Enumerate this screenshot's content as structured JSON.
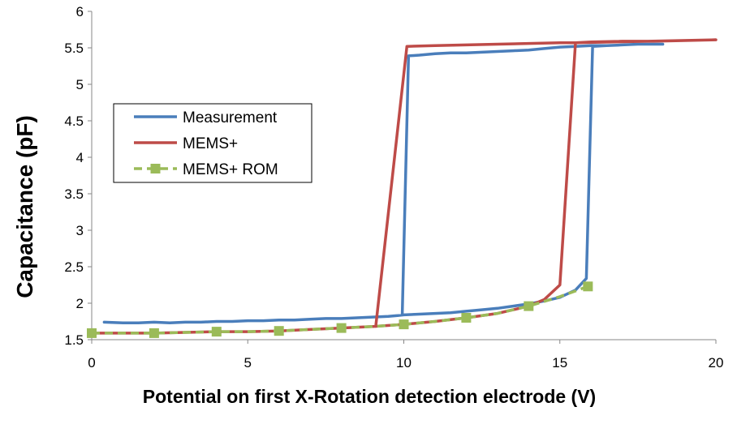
{
  "chart_data": {
    "type": "line",
    "title": "",
    "xlabel": "Potential on first X-Rotation detection electrode (V)",
    "ylabel": "Capacitance (pF)",
    "xlim": [
      0,
      20
    ],
    "ylim": [
      1.5,
      6
    ],
    "xticks": [
      0,
      5,
      10,
      15,
      20
    ],
    "yticks": [
      1.5,
      2,
      2.5,
      3,
      3.5,
      4,
      4.5,
      5,
      5.5,
      6
    ],
    "grid": false,
    "legend_position": "left-middle",
    "series": [
      {
        "name": "Measurement",
        "color": "#4a7ebb",
        "style": "solid",
        "marker": "none",
        "x": [
          0.4,
          1.0,
          1.5,
          2.0,
          2.5,
          3.0,
          3.5,
          4.0,
          4.5,
          5.0,
          5.5,
          6.0,
          6.5,
          7.0,
          7.5,
          8.0,
          8.5,
          9.0,
          9.5,
          9.8,
          10.0,
          10.5,
          11.0,
          11.5,
          12.0,
          12.5,
          13.0,
          13.5,
          14.0,
          14.5,
          15.0,
          15.5,
          15.85,
          16.05,
          16.5,
          17.0,
          17.5,
          18.0,
          18.3,
          17.5,
          17.0,
          16.5,
          16.0,
          15.5,
          15.0,
          14.5,
          14.0,
          13.5,
          13.0,
          12.5,
          12.0,
          11.5,
          11.0,
          10.5,
          10.15,
          9.95
        ],
        "y": [
          1.74,
          1.73,
          1.73,
          1.74,
          1.73,
          1.74,
          1.74,
          1.75,
          1.75,
          1.76,
          1.76,
          1.77,
          1.77,
          1.78,
          1.79,
          1.79,
          1.8,
          1.81,
          1.82,
          1.83,
          1.84,
          1.85,
          1.86,
          1.87,
          1.89,
          1.91,
          1.93,
          1.96,
          1.99,
          2.03,
          2.08,
          2.18,
          2.34,
          5.52,
          5.53,
          5.54,
          5.55,
          5.55,
          5.55,
          5.55,
          5.54,
          5.53,
          5.53,
          5.52,
          5.51,
          5.49,
          5.47,
          5.46,
          5.45,
          5.44,
          5.43,
          5.43,
          5.42,
          5.4,
          5.39,
          1.85
        ]
      },
      {
        "name": "MEMS+",
        "color": "#be4b48",
        "style": "solid",
        "marker": "none",
        "x": [
          0,
          1,
          2,
          3,
          4,
          5,
          6,
          7,
          8,
          9,
          10,
          11,
          12,
          13,
          14,
          14.5,
          15.0,
          15.5,
          16,
          17,
          18,
          19,
          20,
          15.5,
          15,
          14,
          13,
          12,
          11,
          10.1,
          9.1
        ],
        "y": [
          1.59,
          1.59,
          1.59,
          1.6,
          1.61,
          1.61,
          1.62,
          1.64,
          1.66,
          1.68,
          1.71,
          1.75,
          1.8,
          1.86,
          1.96,
          2.05,
          2.25,
          5.57,
          5.58,
          5.59,
          5.59,
          5.6,
          5.61,
          5.57,
          5.57,
          5.56,
          5.55,
          5.54,
          5.53,
          5.52,
          1.68
        ]
      },
      {
        "name": "MEMS+ ROM",
        "color": "#9bbb59",
        "style": "dashed",
        "marker": "square",
        "x": [
          0,
          1,
          2,
          3,
          4,
          5,
          6,
          7,
          8,
          9,
          10,
          11,
          12,
          13,
          14,
          15,
          15.9
        ],
        "y": [
          1.59,
          1.59,
          1.59,
          1.6,
          1.61,
          1.61,
          1.62,
          1.64,
          1.66,
          1.68,
          1.71,
          1.75,
          1.8,
          1.86,
          1.96,
          2.09,
          2.23
        ],
        "marker_x": [
          0,
          2,
          4,
          6,
          8,
          10,
          12,
          14,
          15.9
        ],
        "marker_y": [
          1.59,
          1.59,
          1.61,
          1.62,
          1.66,
          1.71,
          1.8,
          1.96,
          2.23
        ]
      }
    ]
  }
}
